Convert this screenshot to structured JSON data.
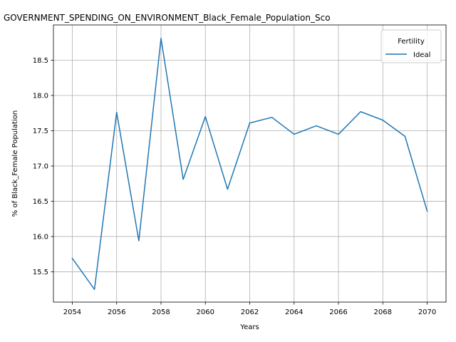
{
  "chart_data": {
    "type": "line",
    "title": "GOVERNMENT_SPENDING_ON_ENVIRONMENT_Black_Female_Population_Sco",
    "xlabel": "Years",
    "ylabel": "% of Black_Female Population",
    "x": [
      2054,
      2055,
      2056,
      2057,
      2058,
      2059,
      2060,
      2061,
      2062,
      2063,
      2064,
      2065,
      2066,
      2067,
      2068,
      2069,
      2070
    ],
    "series": [
      {
        "name": "Ideal",
        "color": "#1f77b4",
        "values": [
          15.69,
          15.25,
          17.76,
          15.94,
          18.81,
          16.81,
          17.7,
          16.67,
          17.61,
          17.69,
          17.45,
          17.57,
          17.45,
          17.77,
          17.65,
          17.42,
          16.36
        ]
      }
    ],
    "xlim": [
      2053.15,
      2070.85
    ],
    "ylim": [
      15.07,
      19.0
    ],
    "xticks": [
      2054,
      2056,
      2058,
      2060,
      2062,
      2064,
      2066,
      2068,
      2070
    ],
    "yticks": [
      15.5,
      16.0,
      16.5,
      17.0,
      17.5,
      18.0,
      18.5
    ],
    "ytick_labels": [
      "15.5",
      "16.0",
      "16.5",
      "17.0",
      "17.5",
      "18.0",
      "18.5"
    ],
    "grid": true,
    "legend": {
      "title": "Fertility",
      "placement": "top-right"
    }
  }
}
